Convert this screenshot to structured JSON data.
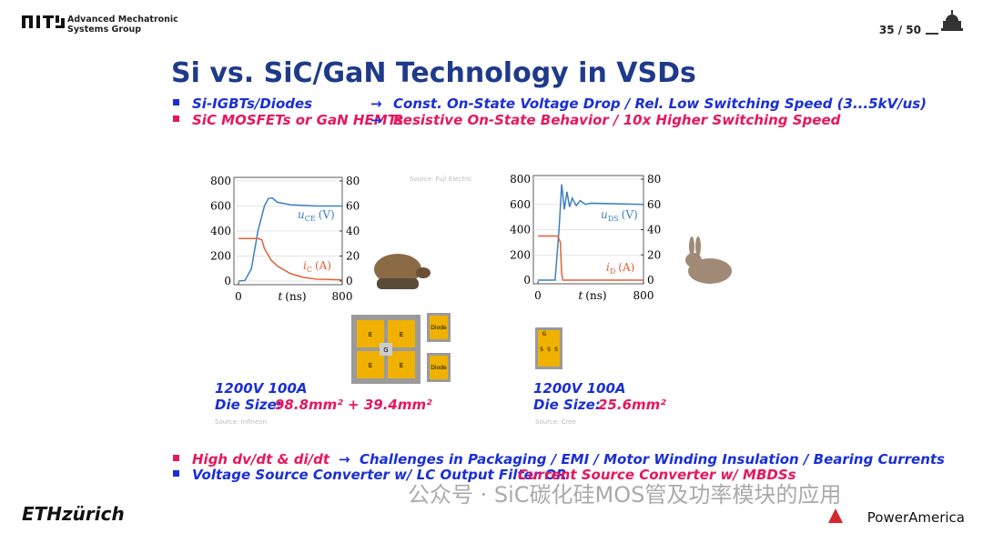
{
  "header": {
    "group": [
      "Advanced Mechatronic",
      "Systems Group"
    ],
    "page": "35 / 50"
  },
  "title": "Si vs. SiC/GaN Technology in VSDs",
  "bullets": [
    {
      "left": "Si-IGBTs/Diodes",
      "arrow": "→",
      "right": "Const. On-State Voltage Drop / Rel. Low Switching Speed (3...5kV/us)"
    },
    {
      "left": "SiC MOSFETs or GaN HEMTs",
      "arrow": "→",
      "right": "Resistive On-State Behavior / 10x Higher Switching Speed"
    }
  ],
  "chart_data": [
    {
      "type": "line",
      "source": "Source: Fuji Electric",
      "xlim": [
        0,
        800
      ],
      "xticks": [
        0,
        800
      ],
      "ylim": [
        0,
        800
      ],
      "yticks": [
        0,
        200,
        400,
        600,
        800
      ],
      "y2lim": [
        0,
        80
      ],
      "y2ticks": [
        0,
        20,
        40,
        60,
        80
      ],
      "grid": true,
      "xlabel": {
        "symbol": "t",
        "unit": "(ns)"
      },
      "series": [
        {
          "label": {
            "symbol": "u",
            "sub": "CE",
            "unit": "(V)"
          },
          "color": "#3d7fc1",
          "x": [
            0,
            50,
            100,
            150,
            200,
            230,
            260,
            300,
            400,
            600,
            800
          ],
          "values": [
            0,
            5,
            100,
            400,
            600,
            660,
            665,
            630,
            610,
            600,
            600
          ]
        },
        {
          "label": {
            "symbol": "i",
            "sub": "C",
            "unit": "(A)"
          },
          "color": "#e0603a",
          "axis": "y2",
          "x": [
            0,
            150,
            180,
            200,
            250,
            300,
            400,
            500,
            600,
            800
          ],
          "values": [
            34,
            34,
            33,
            26,
            17,
            12,
            6,
            3,
            1.5,
            1
          ]
        }
      ]
    },
    {
      "type": "line",
      "xlim": [
        0,
        800
      ],
      "xticks": [
        0,
        800
      ],
      "ylim": [
        0,
        800
      ],
      "yticks": [
        0,
        200,
        400,
        600,
        800
      ],
      "y2lim": [
        0,
        80
      ],
      "y2ticks": [
        0,
        20,
        40,
        60,
        80
      ],
      "grid": true,
      "xlabel": {
        "symbol": "t",
        "unit": "(ns)"
      },
      "series": [
        {
          "label": {
            "symbol": "u",
            "sub": "DS",
            "unit": "(V)"
          },
          "color": "#3d7fc1",
          "x": [
            0,
            130,
            160,
            180,
            200,
            220,
            240,
            260,
            290,
            320,
            360,
            400,
            800
          ],
          "values": [
            0,
            0,
            400,
            760,
            560,
            700,
            580,
            650,
            590,
            630,
            600,
            610,
            600
          ]
        },
        {
          "label": {
            "symbol": "i",
            "sub": "D",
            "unit": "(A)"
          },
          "color": "#e0603a",
          "axis": "y2",
          "x": [
            0,
            150,
            170,
            180,
            190,
            800
          ],
          "values": [
            35,
            35,
            30,
            5,
            0,
            0
          ]
        }
      ]
    }
  ],
  "chip1": {
    "cells": [
      "E",
      "E",
      "G",
      "E",
      "E"
    ],
    "diodes": [
      "Diode",
      "Diode"
    ]
  },
  "chip2": {
    "gate": "G",
    "sources": [
      "S",
      "S",
      "S"
    ]
  },
  "spec1": {
    "rating": "1200V  100A",
    "die_label": "Die Size:",
    "die_value": "98.8mm² + 39.4mm²",
    "source": "Source: Infineon"
  },
  "spec2": {
    "rating": "1200V  100A",
    "die_label": "Die Size:",
    "die_value": "25.6mm²",
    "source": "Source: Cree"
  },
  "bottom": [
    {
      "a": "High dv/dt & di/dt",
      "arrow": "→",
      "b": "Challenges in Packaging / EMI / Motor Winding Insulation / Bearing Currents"
    },
    {
      "a": "Voltage Source Converter w/ LC Output Filter  OR",
      "b": "Current Source Converter w/ MBDSs"
    }
  ],
  "footer": {
    "left": "ETHzürich",
    "watermark": "公众号 · SiC碳化硅MOS管及功率模块的应用",
    "right": "PowerAmerica"
  }
}
